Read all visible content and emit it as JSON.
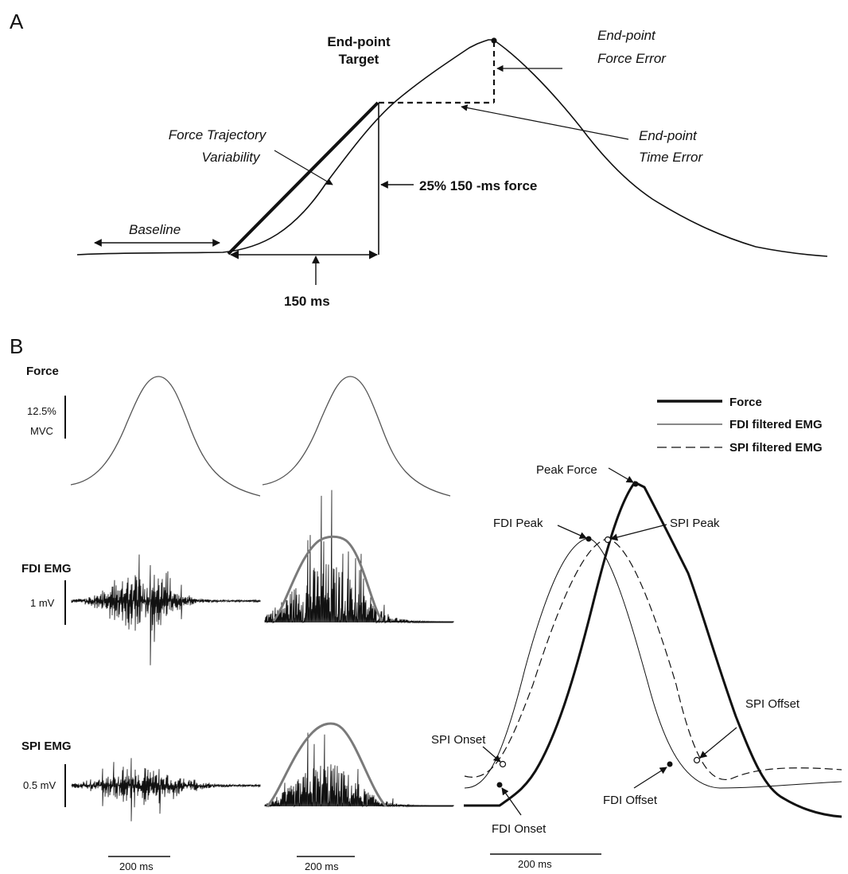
{
  "panel_a": {
    "letter": "A",
    "endpoint_target": [
      "End-point",
      "Target"
    ],
    "endpoint_force_error": [
      "End-point",
      "Force Error"
    ],
    "endpoint_time_error": [
      "End-point",
      "Time Error"
    ],
    "force_trajectory_variability": [
      "Force Trajectory",
      "Variability"
    ],
    "baseline": "Baseline",
    "force_25": "25% 150 -ms force",
    "ms150": "150 ms"
  },
  "panel_b": {
    "letter": "B",
    "row_labels": {
      "force": "Force",
      "fdi_emg": "FDI EMG",
      "spi_emg": "SPI EMG"
    },
    "scale_labels": {
      "force_pct": "12.5%",
      "force_unit": "MVC",
      "fdi": "1 mV",
      "spi": "0.5 mV"
    },
    "time_scales": [
      "200 ms",
      "200 ms",
      "200 ms"
    ],
    "legend": [
      {
        "label": "Force",
        "style": "thick-solid"
      },
      {
        "label": "FDI filtered EMG",
        "style": "thin-solid"
      },
      {
        "label": "SPI filtered EMG",
        "style": "dashed"
      }
    ],
    "annotations": {
      "peak_force": "Peak Force",
      "fdi_peak": "FDI Peak",
      "spi_peak": "SPI Peak",
      "spi_onset": "SPI Onset",
      "fdi_onset": "FDI Onset",
      "spi_offset": "SPI Offset",
      "fdi_offset": "FDI Offset"
    }
  },
  "colors": {
    "ink": "#111111",
    "envelope_gray": "#7a7a7a",
    "force_trace_gray": "#555555"
  }
}
